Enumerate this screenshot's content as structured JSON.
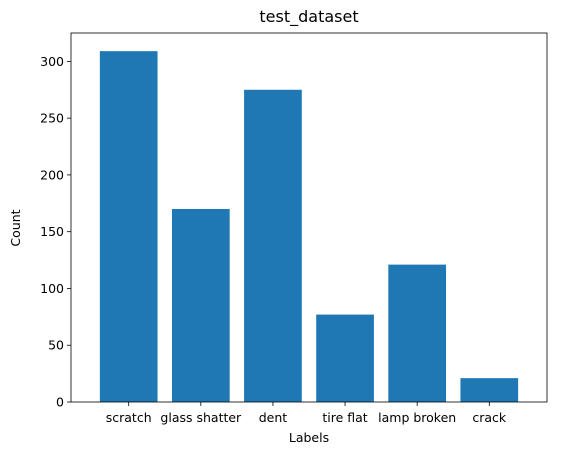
{
  "chart_data": {
    "type": "bar",
    "title": "test_dataset",
    "xlabel": "Labels",
    "ylabel": "Count",
    "categories": [
      "scratch",
      "glass shatter",
      "dent",
      "tire flat",
      "lamp broken",
      "crack"
    ],
    "values": [
      309,
      170,
      275,
      77,
      121,
      21
    ],
    "ylim": [
      0,
      325
    ],
    "yticks": [
      0,
      50,
      100,
      150,
      200,
      250,
      300
    ],
    "bar_color": "#1f77b4",
    "grid": false,
    "legend": "none"
  }
}
